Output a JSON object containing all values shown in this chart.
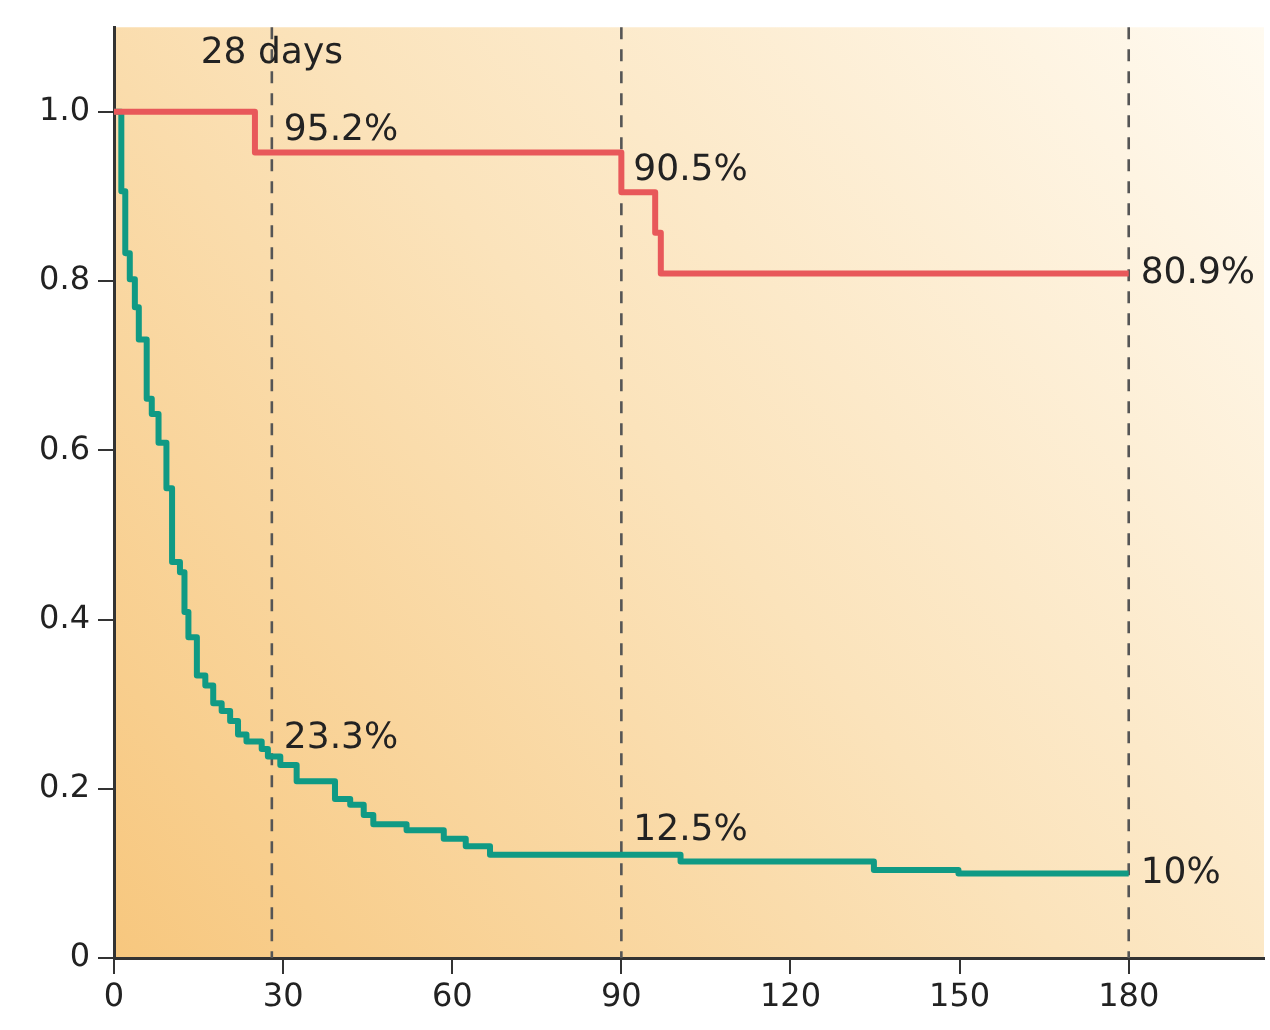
{
  "chart_data": {
    "type": "step",
    "xlim": [
      0,
      204
    ],
    "xticks": [
      0,
      30,
      60,
      90,
      120,
      150,
      180
    ],
    "ylim": [
      0,
      1.1
    ],
    "yticks": [
      0,
      0.2,
      0.4,
      0.6,
      0.8,
      {
        "value": 1,
        "label": "1.0"
      }
    ],
    "grid": false,
    "legend": false,
    "line_style": "solid",
    "marker": "none",
    "series": [
      {
        "color": "#e8585a",
        "x": [
          0,
          25,
          90,
          96,
          97,
          180
        ],
        "values": [
          1,
          0.952,
          0.905,
          0.857,
          0.809,
          0.809
        ]
      },
      {
        "color": "#109a84",
        "x": [
          0,
          1.3,
          2,
          2.8,
          3.7,
          4.4,
          5.8,
          6.7,
          7.9,
          9.3,
          10.3,
          11.7,
          12.5,
          13.2,
          14.7,
          16.2,
          17.6,
          19.1,
          20.6,
          22,
          23.5,
          26.2,
          27.3,
          29.5,
          32.4,
          39.2,
          41.9,
          44.3,
          46,
          51.9,
          58.5,
          62.4,
          66.7,
          100.5,
          134.8,
          149.8,
          180
        ],
        "values": [
          1,
          0.906,
          0.833,
          0.802,
          0.769,
          0.731,
          0.661,
          0.643,
          0.609,
          0.555,
          0.468,
          0.456,
          0.409,
          0.379,
          0.334,
          0.322,
          0.301,
          0.292,
          0.28,
          0.264,
          0.256,
          0.247,
          0.238,
          0.228,
          0.209,
          0.188,
          0.181,
          0.169,
          0.158,
          0.151,
          0.141,
          0.132,
          0.122,
          0.114,
          0.104,
          0.1,
          0.1
        ]
      }
    ],
    "ref_lines": [
      {
        "axis": "x",
        "value": 28,
        "label": "28 days",
        "color": "#555555",
        "line_style": "dashed"
      },
      {
        "axis": "x",
        "value": 90,
        "color": "#555555",
        "line_style": "dashed"
      },
      {
        "axis": "x",
        "value": 180,
        "color": "#555555",
        "line_style": "dashed"
      }
    ],
    "annotations": [
      {
        "text": "95.2%",
        "x": 28,
        "y": 0.952
      },
      {
        "text": "90.5%",
        "x": 90,
        "y": 0.905
      },
      {
        "text": "80.9%",
        "x": 180,
        "y": 0.809
      },
      {
        "text": "23.3%",
        "x": 28,
        "y": 0.233
      },
      {
        "text": "12.5%",
        "x": 90,
        "y": 0.125
      },
      {
        "text": "10%",
        "x": 180,
        "y": 0.1
      }
    ]
  }
}
